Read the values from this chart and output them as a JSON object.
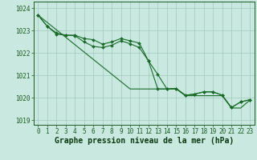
{
  "x_values": [
    0,
    1,
    2,
    3,
    4,
    5,
    6,
    7,
    8,
    9,
    10,
    11,
    12,
    13,
    14,
    15,
    16,
    17,
    18,
    19,
    20,
    21,
    22,
    23
  ],
  "x_labels": [
    "0",
    "1",
    "2",
    "3",
    "4",
    "5",
    "6",
    "7",
    "8",
    "9",
    "10",
    "11",
    "12",
    "13",
    "14",
    "15",
    "16",
    "17",
    "18",
    "19",
    "20",
    "21",
    "22",
    "23"
  ],
  "series": {
    "s1": [
      1023.7,
      1023.2,
      1022.85,
      1022.8,
      1022.8,
      1022.65,
      1022.6,
      1022.4,
      1022.5,
      1022.65,
      1022.55,
      1022.45,
      1021.65,
      1020.4,
      1020.4,
      1020.42,
      1020.12,
      1020.17,
      1020.27,
      1020.27,
      1020.12,
      1019.57,
      1019.82,
      1019.92
    ],
    "s2": [
      1023.7,
      1023.2,
      1022.9,
      1022.8,
      1022.78,
      1022.5,
      1022.3,
      1022.25,
      1022.35,
      1022.55,
      1022.42,
      1022.25,
      1021.65,
      1021.05,
      1020.4,
      1020.42,
      1020.12,
      1020.17,
      1020.27,
      1020.27,
      1020.12,
      1019.57,
      1019.82,
      1019.92
    ],
    "s3": [
      1023.7,
      1023.37,
      1023.04,
      1022.71,
      1022.38,
      1022.05,
      1021.72,
      1021.39,
      1021.06,
      1020.73,
      1020.4,
      1020.4,
      1020.4,
      1020.4,
      1020.4,
      1020.4,
      1020.1,
      1020.1,
      1020.1,
      1020.1,
      1020.1,
      1019.55,
      1019.55,
      1019.9
    ]
  },
  "bg_color": "#c8e8e0",
  "grid_color": "#a0c8c0",
  "line_color": "#1a6b28",
  "ylim": [
    1018.8,
    1024.3
  ],
  "yticks": [
    1019,
    1020,
    1021,
    1022,
    1023,
    1024
  ],
  "xlabel": "Graphe pression niveau de la mer (hPa)",
  "tick_fontsize": 5.5,
  "xlabel_fontsize": 7.0
}
